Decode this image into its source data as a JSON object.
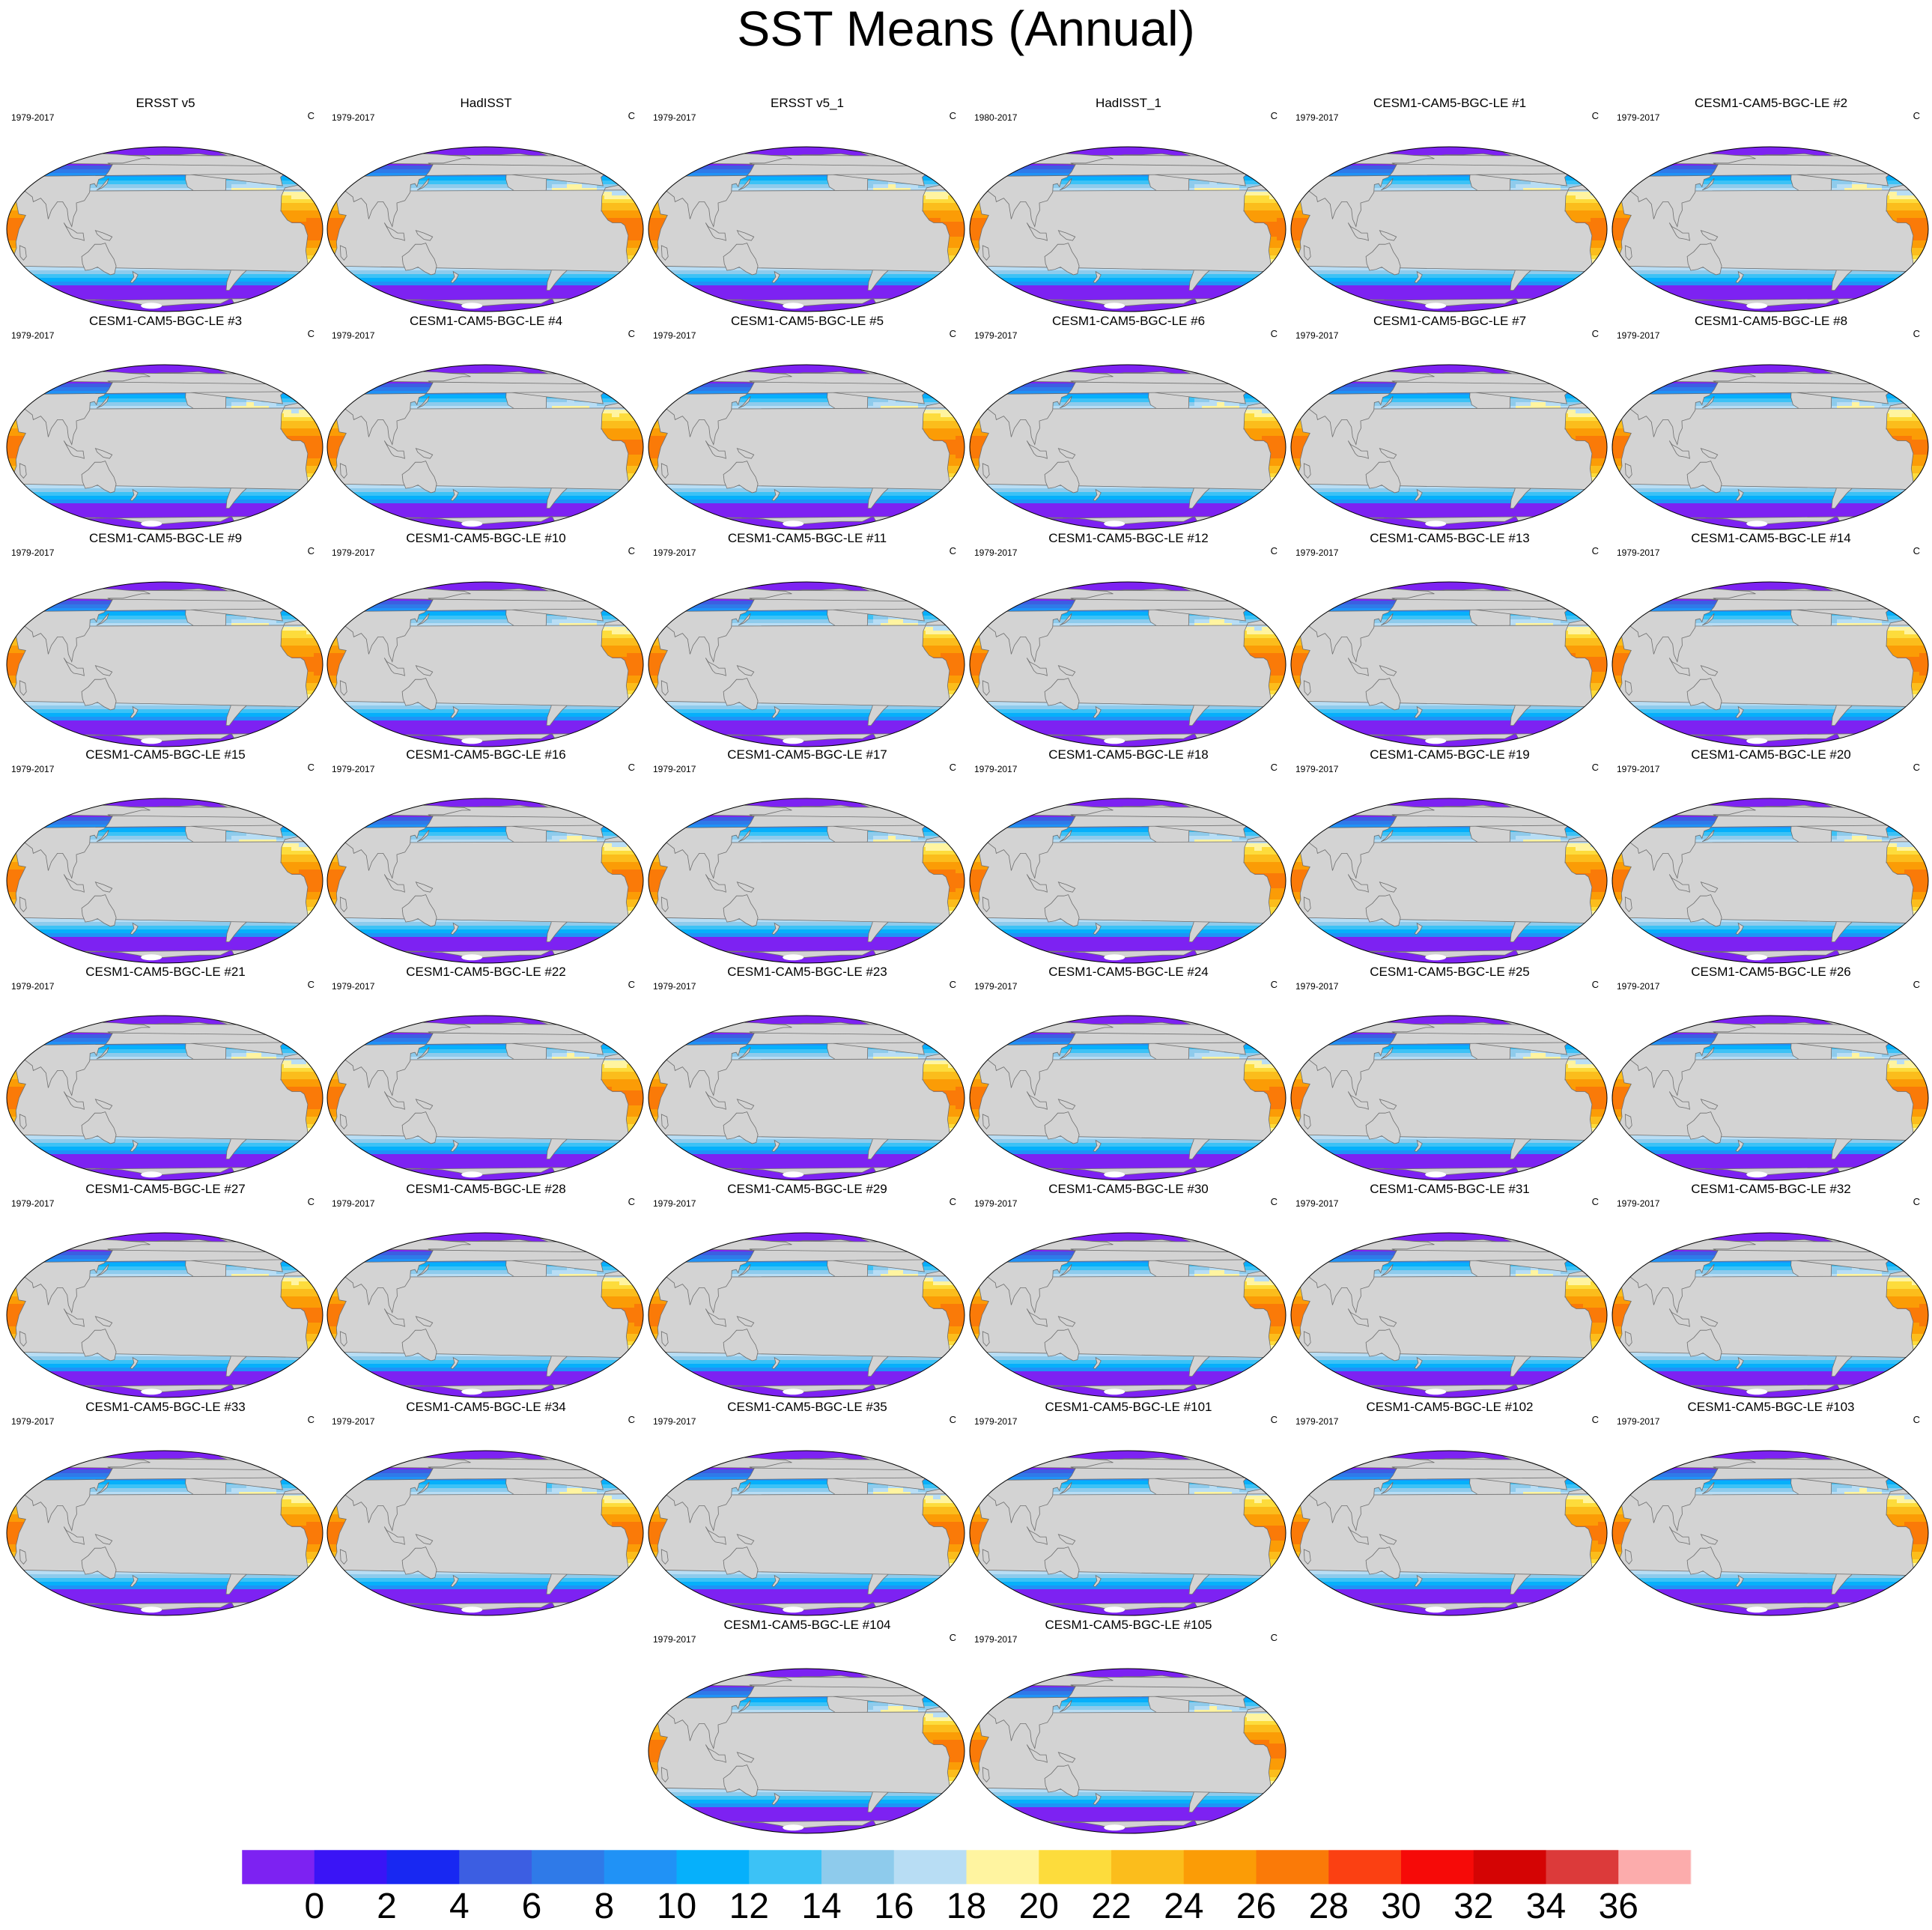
{
  "title": "SST Means (Annual)",
  "panels": [
    {
      "title": "ERSST v5",
      "years": "1979-2017",
      "units": "C",
      "dataset": "obs"
    },
    {
      "title": "HadISST",
      "years": "1979-2017",
      "units": "C",
      "dataset": "obs"
    },
    {
      "title": "ERSST v5_1",
      "years": "1979-2017",
      "units": "C",
      "dataset": "obs"
    },
    {
      "title": "HadISST_1",
      "years": "1980-2017",
      "units": "C",
      "dataset": "obs"
    },
    {
      "title": "CESM1-CAM5-BGC-LE #1",
      "years": "1979-2017",
      "units": "C",
      "dataset": "model"
    },
    {
      "title": "CESM1-CAM5-BGC-LE #2",
      "years": "1979-2017",
      "units": "C",
      "dataset": "model"
    },
    {
      "title": "CESM1-CAM5-BGC-LE #3",
      "years": "1979-2017",
      "units": "C",
      "dataset": "model"
    },
    {
      "title": "CESM1-CAM5-BGC-LE #4",
      "years": "1979-2017",
      "units": "C",
      "dataset": "model"
    },
    {
      "title": "CESM1-CAM5-BGC-LE #5",
      "years": "1979-2017",
      "units": "C",
      "dataset": "model"
    },
    {
      "title": "CESM1-CAM5-BGC-LE #6",
      "years": "1979-2017",
      "units": "C",
      "dataset": "model"
    },
    {
      "title": "CESM1-CAM5-BGC-LE #7",
      "years": "1979-2017",
      "units": "C",
      "dataset": "model"
    },
    {
      "title": "CESM1-CAM5-BGC-LE #8",
      "years": "1979-2017",
      "units": "C",
      "dataset": "model"
    },
    {
      "title": "CESM1-CAM5-BGC-LE #9",
      "years": "1979-2017",
      "units": "C",
      "dataset": "model"
    },
    {
      "title": "CESM1-CAM5-BGC-LE #10",
      "years": "1979-2017",
      "units": "C",
      "dataset": "model"
    },
    {
      "title": "CESM1-CAM5-BGC-LE #11",
      "years": "1979-2017",
      "units": "C",
      "dataset": "model"
    },
    {
      "title": "CESM1-CAM5-BGC-LE #12",
      "years": "1979-2017",
      "units": "C",
      "dataset": "model"
    },
    {
      "title": "CESM1-CAM5-BGC-LE #13",
      "years": "1979-2017",
      "units": "C",
      "dataset": "model"
    },
    {
      "title": "CESM1-CAM5-BGC-LE #14",
      "years": "1979-2017",
      "units": "C",
      "dataset": "model"
    },
    {
      "title": "CESM1-CAM5-BGC-LE #15",
      "years": "1979-2017",
      "units": "C",
      "dataset": "model"
    },
    {
      "title": "CESM1-CAM5-BGC-LE #16",
      "years": "1979-2017",
      "units": "C",
      "dataset": "model"
    },
    {
      "title": "CESM1-CAM5-BGC-LE #17",
      "years": "1979-2017",
      "units": "C",
      "dataset": "model"
    },
    {
      "title": "CESM1-CAM5-BGC-LE #18",
      "years": "1979-2017",
      "units": "C",
      "dataset": "model"
    },
    {
      "title": "CESM1-CAM5-BGC-LE #19",
      "years": "1979-2017",
      "units": "C",
      "dataset": "model"
    },
    {
      "title": "CESM1-CAM5-BGC-LE #20",
      "years": "1979-2017",
      "units": "C",
      "dataset": "model"
    },
    {
      "title": "CESM1-CAM5-BGC-LE #21",
      "years": "1979-2017",
      "units": "C",
      "dataset": "model"
    },
    {
      "title": "CESM1-CAM5-BGC-LE #22",
      "years": "1979-2017",
      "units": "C",
      "dataset": "model"
    },
    {
      "title": "CESM1-CAM5-BGC-LE #23",
      "years": "1979-2017",
      "units": "C",
      "dataset": "model"
    },
    {
      "title": "CESM1-CAM5-BGC-LE #24",
      "years": "1979-2017",
      "units": "C",
      "dataset": "model"
    },
    {
      "title": "CESM1-CAM5-BGC-LE #25",
      "years": "1979-2017",
      "units": "C",
      "dataset": "model"
    },
    {
      "title": "CESM1-CAM5-BGC-LE #26",
      "years": "1979-2017",
      "units": "C",
      "dataset": "model"
    },
    {
      "title": "CESM1-CAM5-BGC-LE #27",
      "years": "1979-2017",
      "units": "C",
      "dataset": "model"
    },
    {
      "title": "CESM1-CAM5-BGC-LE #28",
      "years": "1979-2017",
      "units": "C",
      "dataset": "model"
    },
    {
      "title": "CESM1-CAM5-BGC-LE #29",
      "years": "1979-2017",
      "units": "C",
      "dataset": "model"
    },
    {
      "title": "CESM1-CAM5-BGC-LE #30",
      "years": "1979-2017",
      "units": "C",
      "dataset": "model"
    },
    {
      "title": "CESM1-CAM5-BGC-LE #31",
      "years": "1979-2017",
      "units": "C",
      "dataset": "model"
    },
    {
      "title": "CESM1-CAM5-BGC-LE #32",
      "years": "1979-2017",
      "units": "C",
      "dataset": "model"
    },
    {
      "title": "CESM1-CAM5-BGC-LE #33",
      "years": "1979-2017",
      "units": "C",
      "dataset": "model"
    },
    {
      "title": "CESM1-CAM5-BGC-LE #34",
      "years": "1979-2017",
      "units": "C",
      "dataset": "model"
    },
    {
      "title": "CESM1-CAM5-BGC-LE #35",
      "years": "1979-2017",
      "units": "C",
      "dataset": "model"
    },
    {
      "title": "CESM1-CAM5-BGC-LE #101",
      "years": "1979-2017",
      "units": "C",
      "dataset": "model"
    },
    {
      "title": "CESM1-CAM5-BGC-LE #102",
      "years": "1979-2017",
      "units": "C",
      "dataset": "model"
    },
    {
      "title": "CESM1-CAM5-BGC-LE #103",
      "years": "1979-2017",
      "units": "C",
      "dataset": "model"
    },
    {
      "title": "CESM1-CAM5-BGC-LE #104",
      "years": "1979-2017",
      "units": "C",
      "dataset": "model"
    },
    {
      "title": "CESM1-CAM5-BGC-LE #105",
      "years": "1979-2017",
      "units": "C",
      "dataset": "model"
    }
  ],
  "colorbar": {
    "levels": [
      0,
      2,
      4,
      6,
      8,
      10,
      12,
      14,
      16,
      18,
      20,
      22,
      24,
      26,
      28,
      30,
      32,
      34,
      36
    ],
    "tick_labels": [
      "0",
      "2",
      "4",
      "6",
      "8",
      "10",
      "12",
      "14",
      "16",
      "18",
      "20",
      "22",
      "24",
      "26",
      "28",
      "30",
      "32",
      "34",
      "36"
    ],
    "colors": [
      "#7d22f2",
      "#3a14f6",
      "#1828f2",
      "#3c5ee2",
      "#2f7ae8",
      "#2092f6",
      "#06b0fb",
      "#3cc2f6",
      "#8ecbec",
      "#b8ddf4",
      "#fff4a0",
      "#fddc3c",
      "#fbbd1c",
      "#fb9c06",
      "#fa7a08",
      "#fb4012",
      "#f60a08",
      "#d40404",
      "#dc3a3a",
      "#fcacac"
    ]
  },
  "chart_data": {
    "type": "heatmap",
    "title": "SST Means (Annual)",
    "variable": "sea surface temperature, annual mean",
    "units": "C",
    "projection": "Robinson, Pacific-centered",
    "n_panels": 44,
    "contour_levels": [
      0,
      2,
      4,
      6,
      8,
      10,
      12,
      14,
      16,
      18,
      20,
      22,
      24,
      26,
      28,
      30,
      32,
      34,
      36
    ],
    "range": [
      -2,
      38
    ],
    "colorbar_position": "bottom",
    "land_color": "#d3d3d3"
  }
}
